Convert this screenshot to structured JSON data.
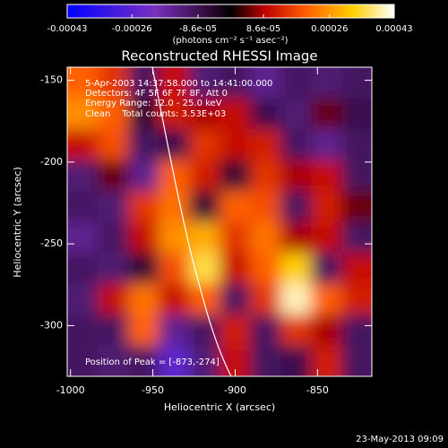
{
  "chart_data": {
    "type": "heatmap",
    "title": "Reconstructed RHESSI Image",
    "xlabel": "Heliocentric X (arcsec)",
    "ylabel": "Heliocentric Y (arcsec)",
    "colorbar_label": "(photons cm⁻² s⁻¹ asec⁻²)",
    "annotations": [
      "5-Apr-2003 14:37:58.000 to 14:41:00.000",
      "Detectors: 4F 5F 6F 7F 8F, Att 0",
      "Energy Range: 12.0 - 25.0 keV",
      "Clean    Total counts: 3.53E+03",
      "Position of Peak = [-873,-274]"
    ],
    "footer": "23-May-2013 09:09",
    "xlim": [
      -1002,
      -817
    ],
    "ylim": [
      -331,
      -142
    ],
    "xticks": [
      -1000,
      -950,
      -900,
      -850
    ],
    "yticks": [
      -150,
      -200,
      -250,
      -300
    ],
    "clim": [
      -0.00043,
      0.00043
    ],
    "cticks": [
      -0.00043,
      -0.00026,
      {
        "value": -8.6e-05,
        "label": "-8.6e-05"
      },
      {
        "value": 8.6e-05,
        "label": "8.6e-05"
      },
      0.00026,
      0.00043
    ],
    "colormap": [
      [
        -0.00043,
        "#0000ff"
      ],
      [
        -0.0002,
        "#7a30c0"
      ],
      [
        -5e-05,
        "#2a0830"
      ],
      [
        0,
        "#000000"
      ],
      [
        9e-05,
        "#c00000"
      ],
      [
        0.0002,
        "#ff6000"
      ],
      [
        0.00032,
        "#ffd000"
      ],
      [
        0.00043,
        "#ffffff"
      ]
    ],
    "z": [
      [
        0.0002,
        0.00015,
        -0.0001,
        0.0001,
        -0.00012,
        -0.0001,
        -0.00015,
        -0.0001,
        -0.00012,
        -0.0001
      ],
      [
        0.00025,
        0.0002,
        -5e-05,
        0.00012,
        8e-05,
        0.0001,
        -8e-05,
        -0.00012,
        5e-05,
        -8e-05
      ],
      [
        0.0001,
        0.00018,
        -0.0001,
        -8e-05,
        0.00015,
        0.0001,
        0.00012,
        -0.0001,
        -0.00015,
        -0.0001
      ],
      [
        -0.00012,
        5e-05,
        -0.00015,
        0.0002,
        0.00012,
        -5e-05,
        0.00015,
        8e-05,
        0.0001,
        -0.0001
      ],
      [
        -0.0001,
        -0.00012,
        0.00015,
        0.00022,
        -5e-05,
        0.0002,
        0.00018,
        -0.0001,
        0.00012,
        5e-05
      ],
      [
        -0.00015,
        -0.0001,
        0.0001,
        0.00025,
        0.00028,
        0.00015,
        0.00022,
        8e-05,
        0.0001,
        -0.0001
      ],
      [
        -0.0001,
        -0.00012,
        -5e-05,
        0.00018,
        0.00035,
        0.0001,
        0.0002,
        0.00032,
        -0.0001,
        0.0001
      ],
      [
        -0.00012,
        0.0001,
        0.00022,
        0.0001,
        0.0002,
        -0.0001,
        0.00015,
        0.0004,
        0.0002,
        0.00012
      ],
      [
        -0.0001,
        -0.0001,
        0.0002,
        -0.00015,
        -0.0001,
        0.00012,
        -0.0001,
        0.00015,
        8e-05,
        -0.0001
      ],
      [
        -0.0001,
        -0.00012,
        -0.0001,
        -0.00025,
        -0.00012,
        0.0001,
        -0.0001,
        -8e-05,
        0.00012,
        -0.0001
      ]
    ]
  }
}
